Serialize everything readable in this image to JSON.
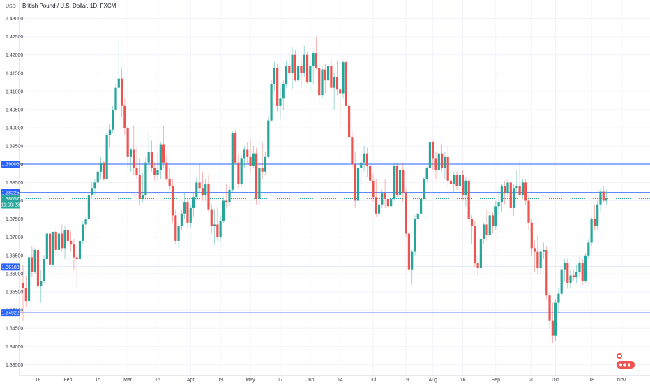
{
  "header": {
    "title": "British Pound / U.S. Dollar, 1D, FXCM",
    "currency": "USD"
  },
  "levels": [
    {
      "value": 1.39006,
      "label": "1.39006",
      "color": "#2962ff"
    },
    {
      "value": 1.38225,
      "label": "1.38225",
      "color": "#2962ff"
    },
    {
      "value": 1.36183,
      "label": "1.36183",
      "color": "#2962ff"
    },
    {
      "value": 1.34922,
      "label": "1.34922",
      "color": "#2962ff"
    }
  ],
  "last_price": {
    "value": 1.38057,
    "label": "1.38057",
    "countdown": "11:09:23",
    "color": "#26a69a"
  },
  "colors": {
    "up": "#26a69a",
    "down": "#ef5350",
    "grid": "#f0f3fa",
    "line": "#2962ff"
  },
  "chart_data": {
    "type": "candlestick",
    "title": "British Pound / U.S. Dollar, 1D, FXCM",
    "ylabel": "USD",
    "ylim": [
      1.33,
      1.43
    ],
    "y_ticks": [
      "1.33500",
      "1.34000",
      "1.34500",
      "1.35000",
      "1.35500",
      "1.36000",
      "1.36500",
      "1.37000",
      "1.37500",
      "1.38000",
      "1.38500",
      "1.39000",
      "1.39500",
      "1.40000",
      "1.40500",
      "1.41000",
      "1.41500",
      "1.42000",
      "1.42500",
      "1.43000"
    ],
    "x_ticks": [
      {
        "label": "18",
        "index": 5
      },
      {
        "label": "Feb",
        "index": 15
      },
      {
        "label": "15",
        "index": 25
      },
      {
        "label": "Mar",
        "index": 35
      },
      {
        "label": "15",
        "index": 45
      },
      {
        "label": "Apr",
        "index": 56
      },
      {
        "label": "19",
        "index": 66
      },
      {
        "label": "May",
        "index": 76
      },
      {
        "label": "17",
        "index": 86
      },
      {
        "label": "Jun",
        "index": 96
      },
      {
        "label": "14",
        "index": 106
      },
      {
        "label": "Jul",
        "index": 117
      },
      {
        "label": "19",
        "index": 128
      },
      {
        "label": "Aug",
        "index": 137
      },
      {
        "label": "16",
        "index": 147
      },
      {
        "label": "Sep",
        "index": 158
      },
      {
        "label": "20",
        "index": 170
      },
      {
        "label": "Oct",
        "index": 178
      },
      {
        "label": "18",
        "index": 190
      },
      {
        "label": "Nov",
        "index": 200
      }
    ],
    "candles": [
      [
        1.3575,
        1.3625,
        1.347,
        1.356
      ],
      [
        1.356,
        1.3595,
        1.351,
        1.3525
      ],
      [
        1.3525,
        1.3665,
        1.352,
        1.3645
      ],
      [
        1.3645,
        1.3675,
        1.359,
        1.3605
      ],
      [
        1.3605,
        1.367,
        1.36,
        1.3665
      ],
      [
        1.3665,
        1.369,
        1.3535,
        1.3565
      ],
      [
        1.3565,
        1.361,
        1.352,
        1.358
      ],
      [
        1.358,
        1.365,
        1.3575,
        1.364
      ],
      [
        1.364,
        1.372,
        1.363,
        1.371
      ],
      [
        1.371,
        1.3725,
        1.361,
        1.3625
      ],
      [
        1.3625,
        1.3715,
        1.362,
        1.3715
      ],
      [
        1.3715,
        1.3725,
        1.365,
        1.3665
      ],
      [
        1.3665,
        1.3715,
        1.364,
        1.371
      ],
      [
        1.371,
        1.3735,
        1.366,
        1.367
      ],
      [
        1.367,
        1.373,
        1.364,
        1.372
      ],
      [
        1.372,
        1.3735,
        1.368,
        1.369
      ],
      [
        1.369,
        1.3715,
        1.366,
        1.368
      ],
      [
        1.368,
        1.3695,
        1.361,
        1.3645
      ],
      [
        1.3645,
        1.3665,
        1.3565,
        1.364
      ],
      [
        1.364,
        1.3695,
        1.363,
        1.369
      ],
      [
        1.369,
        1.3745,
        1.368,
        1.3735
      ],
      [
        1.3735,
        1.376,
        1.372,
        1.375
      ],
      [
        1.375,
        1.382,
        1.3745,
        1.3815
      ],
      [
        1.3815,
        1.385,
        1.3805,
        1.3835
      ],
      [
        1.3835,
        1.386,
        1.3815,
        1.385
      ],
      [
        1.385,
        1.3885,
        1.383,
        1.388
      ],
      [
        1.388,
        1.392,
        1.386,
        1.3905
      ],
      [
        1.3905,
        1.391,
        1.3855,
        1.386
      ],
      [
        1.386,
        1.3985,
        1.3855,
        1.398
      ],
      [
        1.398,
        1.401,
        1.3945,
        1.3995
      ],
      [
        1.3995,
        1.406,
        1.3985,
        1.405
      ],
      [
        1.405,
        1.412,
        1.404,
        1.411
      ],
      [
        1.411,
        1.424,
        1.409,
        1.4135
      ],
      [
        1.4135,
        1.4165,
        1.403,
        1.406
      ],
      [
        1.406,
        1.408,
        1.398,
        1.4
      ],
      [
        1.4,
        1.4005,
        1.389,
        1.392
      ],
      [
        1.392,
        1.3945,
        1.388,
        1.394
      ],
      [
        1.394,
        1.4005,
        1.387,
        1.389
      ],
      [
        1.389,
        1.3945,
        1.386,
        1.387
      ],
      [
        1.387,
        1.3915,
        1.379,
        1.3805
      ],
      [
        1.3805,
        1.3875,
        1.3795,
        1.3815
      ],
      [
        1.3815,
        1.392,
        1.381,
        1.3905
      ],
      [
        1.3905,
        1.3985,
        1.388,
        1.3935
      ],
      [
        1.3935,
        1.3965,
        1.388,
        1.389
      ],
      [
        1.389,
        1.3905,
        1.3855,
        1.387
      ],
      [
        1.387,
        1.393,
        1.3855,
        1.3885
      ],
      [
        1.3885,
        1.396,
        1.386,
        1.3955
      ],
      [
        1.3955,
        1.4005,
        1.389,
        1.3905
      ],
      [
        1.3905,
        1.3925,
        1.3855,
        1.386
      ],
      [
        1.386,
        1.389,
        1.383,
        1.384
      ],
      [
        1.384,
        1.386,
        1.374,
        1.376
      ],
      [
        1.376,
        1.3775,
        1.368,
        1.369
      ],
      [
        1.369,
        1.374,
        1.367,
        1.373
      ],
      [
        1.373,
        1.3775,
        1.372,
        1.3765
      ],
      [
        1.3765,
        1.382,
        1.375,
        1.3795
      ],
      [
        1.3795,
        1.3805,
        1.3725,
        1.374
      ],
      [
        1.374,
        1.379,
        1.3725,
        1.378
      ],
      [
        1.378,
        1.382,
        1.3755,
        1.381
      ],
      [
        1.381,
        1.3865,
        1.38,
        1.385
      ],
      [
        1.385,
        1.39,
        1.382,
        1.3835
      ],
      [
        1.3835,
        1.388,
        1.38,
        1.3815
      ],
      [
        1.3815,
        1.386,
        1.38,
        1.3845
      ],
      [
        1.3845,
        1.387,
        1.377,
        1.3775
      ],
      [
        1.3775,
        1.379,
        1.371,
        1.373
      ],
      [
        1.373,
        1.3775,
        1.368,
        1.3735
      ],
      [
        1.3735,
        1.378,
        1.369,
        1.37
      ],
      [
        1.37,
        1.376,
        1.369,
        1.3745
      ],
      [
        1.3745,
        1.381,
        1.374,
        1.38
      ],
      [
        1.38,
        1.3845,
        1.378,
        1.3795
      ],
      [
        1.3795,
        1.384,
        1.3785,
        1.383
      ],
      [
        1.383,
        1.399,
        1.382,
        1.3985
      ],
      [
        1.3985,
        1.3995,
        1.39,
        1.3905
      ],
      [
        1.3905,
        1.393,
        1.3835,
        1.3845
      ],
      [
        1.3845,
        1.3925,
        1.384,
        1.3915
      ],
      [
        1.3915,
        1.395,
        1.389,
        1.394
      ],
      [
        1.394,
        1.396,
        1.39,
        1.392
      ],
      [
        1.392,
        1.397,
        1.388,
        1.3895
      ],
      [
        1.3895,
        1.395,
        1.389,
        1.393
      ],
      [
        1.393,
        1.3945,
        1.379,
        1.3805
      ],
      [
        1.3805,
        1.3895,
        1.379,
        1.389
      ],
      [
        1.389,
        1.396,
        1.386,
        1.388
      ],
      [
        1.388,
        1.3935,
        1.387,
        1.392
      ],
      [
        1.392,
        1.403,
        1.3915,
        1.402
      ],
      [
        1.402,
        1.413,
        1.4015,
        1.412
      ],
      [
        1.412,
        1.418,
        1.41,
        1.4165
      ],
      [
        1.4165,
        1.4175,
        1.4045,
        1.406
      ],
      [
        1.406,
        1.4115,
        1.4025,
        1.408
      ],
      [
        1.408,
        1.413,
        1.405,
        1.412
      ],
      [
        1.412,
        1.4185,
        1.411,
        1.417
      ],
      [
        1.417,
        1.4205,
        1.414,
        1.415
      ],
      [
        1.415,
        1.422,
        1.4105,
        1.42
      ],
      [
        1.42,
        1.4215,
        1.4125,
        1.413
      ],
      [
        1.413,
        1.418,
        1.41,
        1.417
      ],
      [
        1.417,
        1.419,
        1.411,
        1.415
      ],
      [
        1.415,
        1.4225,
        1.414,
        1.42
      ],
      [
        1.42,
        1.421,
        1.412,
        1.4125
      ],
      [
        1.4125,
        1.419,
        1.41,
        1.417
      ],
      [
        1.417,
        1.421,
        1.412,
        1.4205
      ],
      [
        1.4205,
        1.425,
        1.416,
        1.4165
      ],
      [
        1.4165,
        1.4195,
        1.407,
        1.409
      ],
      [
        1.409,
        1.417,
        1.408,
        1.416
      ],
      [
        1.416,
        1.4175,
        1.4095,
        1.413
      ],
      [
        1.413,
        1.418,
        1.4095,
        1.417
      ],
      [
        1.417,
        1.419,
        1.41,
        1.411
      ],
      [
        1.411,
        1.415,
        1.405,
        1.414
      ],
      [
        1.414,
        1.4185,
        1.409,
        1.4105
      ],
      [
        1.4105,
        1.411,
        1.4005,
        1.4095
      ],
      [
        1.4095,
        1.4185,
        1.408,
        1.418
      ],
      [
        1.418,
        1.4185,
        1.406,
        1.406
      ],
      [
        1.406,
        1.407,
        1.396,
        1.3975
      ],
      [
        1.3975,
        1.399,
        1.389,
        1.39
      ],
      [
        1.39,
        1.3935,
        1.378,
        1.38
      ],
      [
        1.38,
        1.3905,
        1.379,
        1.389
      ],
      [
        1.389,
        1.393,
        1.3845,
        1.3905
      ],
      [
        1.3905,
        1.395,
        1.388,
        1.393
      ],
      [
        1.393,
        1.3945,
        1.3865,
        1.3895
      ],
      [
        1.3895,
        1.39,
        1.3825,
        1.3855
      ],
      [
        1.3855,
        1.3875,
        1.3795,
        1.381
      ],
      [
        1.381,
        1.386,
        1.3755,
        1.3765
      ],
      [
        1.3765,
        1.382,
        1.375,
        1.379
      ],
      [
        1.379,
        1.383,
        1.378,
        1.382
      ],
      [
        1.382,
        1.386,
        1.378,
        1.3805
      ],
      [
        1.3805,
        1.3835,
        1.376,
        1.3785
      ],
      [
        1.3785,
        1.381,
        1.377,
        1.3805
      ],
      [
        1.3805,
        1.3905,
        1.38,
        1.3895
      ],
      [
        1.3895,
        1.3905,
        1.381,
        1.3815
      ],
      [
        1.3815,
        1.3895,
        1.381,
        1.3885
      ],
      [
        1.3885,
        1.3905,
        1.3795,
        1.382
      ],
      [
        1.382,
        1.3835,
        1.37,
        1.371
      ],
      [
        1.371,
        1.373,
        1.36,
        1.361
      ],
      [
        1.361,
        1.3665,
        1.357,
        1.366
      ],
      [
        1.366,
        1.376,
        1.365,
        1.375
      ],
      [
        1.375,
        1.3785,
        1.372,
        1.3765
      ],
      [
        1.3765,
        1.3815,
        1.376,
        1.3805
      ],
      [
        1.3805,
        1.3865,
        1.38,
        1.386
      ],
      [
        1.386,
        1.3895,
        1.385,
        1.389
      ],
      [
        1.389,
        1.3965,
        1.388,
        1.396
      ],
      [
        1.396,
        1.3965,
        1.3885,
        1.3915
      ],
      [
        1.3915,
        1.3935,
        1.386,
        1.3885
      ],
      [
        1.3885,
        1.3945,
        1.387,
        1.393
      ],
      [
        1.393,
        1.3955,
        1.388,
        1.389
      ],
      [
        1.389,
        1.3935,
        1.386,
        1.392
      ],
      [
        1.392,
        1.395,
        1.384,
        1.3855
      ],
      [
        1.3855,
        1.3875,
        1.383,
        1.3845
      ],
      [
        1.3845,
        1.388,
        1.382,
        1.387
      ],
      [
        1.387,
        1.388,
        1.383,
        1.384
      ],
      [
        1.384,
        1.3875,
        1.382,
        1.387
      ],
      [
        1.387,
        1.3885,
        1.38,
        1.3815
      ],
      [
        1.3815,
        1.3865,
        1.3785,
        1.3855
      ],
      [
        1.3855,
        1.387,
        1.374,
        1.375
      ],
      [
        1.375,
        1.376,
        1.368,
        1.373
      ],
      [
        1.373,
        1.3745,
        1.362,
        1.363
      ],
      [
        1.363,
        1.365,
        1.3595,
        1.3615
      ],
      [
        1.3615,
        1.37,
        1.361,
        1.3695
      ],
      [
        1.3695,
        1.374,
        1.368,
        1.3735
      ],
      [
        1.3735,
        1.3775,
        1.369,
        1.3705
      ],
      [
        1.3705,
        1.377,
        1.37,
        1.376
      ],
      [
        1.376,
        1.377,
        1.371,
        1.373
      ],
      [
        1.373,
        1.38,
        1.372,
        1.3785
      ],
      [
        1.3785,
        1.383,
        1.376,
        1.3795
      ],
      [
        1.3795,
        1.3845,
        1.377,
        1.384
      ],
      [
        1.384,
        1.3855,
        1.379,
        1.382
      ],
      [
        1.382,
        1.386,
        1.381,
        1.385
      ],
      [
        1.385,
        1.386,
        1.377,
        1.378
      ],
      [
        1.378,
        1.3845,
        1.376,
        1.3835
      ],
      [
        1.3835,
        1.3885,
        1.382,
        1.384
      ],
      [
        1.384,
        1.391,
        1.381,
        1.3815
      ],
      [
        1.3815,
        1.386,
        1.3805,
        1.385
      ],
      [
        1.385,
        1.386,
        1.379,
        1.38
      ],
      [
        1.38,
        1.3815,
        1.372,
        1.374
      ],
      [
        1.374,
        1.375,
        1.365,
        1.367
      ],
      [
        1.367,
        1.369,
        1.3605,
        1.366
      ],
      [
        1.366,
        1.3705,
        1.36,
        1.3615
      ],
      [
        1.3615,
        1.367,
        1.36,
        1.366
      ],
      [
        1.366,
        1.3685,
        1.364,
        1.3665
      ],
      [
        1.3665,
        1.3675,
        1.353,
        1.354
      ],
      [
        1.354,
        1.355,
        1.345,
        1.347
      ],
      [
        1.347,
        1.352,
        1.341,
        1.343
      ],
      [
        1.343,
        1.353,
        1.3415,
        1.352
      ],
      [
        1.352,
        1.356,
        1.349,
        1.3545
      ],
      [
        1.3545,
        1.3615,
        1.354,
        1.361
      ],
      [
        1.361,
        1.364,
        1.358,
        1.363
      ],
      [
        1.363,
        1.364,
        1.356,
        1.3575
      ],
      [
        1.3575,
        1.361,
        1.356,
        1.3595
      ],
      [
        1.3595,
        1.361,
        1.358,
        1.359
      ],
      [
        1.359,
        1.3625,
        1.3575,
        1.3605
      ],
      [
        1.3605,
        1.3645,
        1.359,
        1.363
      ],
      [
        1.363,
        1.364,
        1.357,
        1.358
      ],
      [
        1.358,
        1.3655,
        1.3575,
        1.365
      ],
      [
        1.365,
        1.3695,
        1.364,
        1.3685
      ],
      [
        1.3685,
        1.3755,
        1.3675,
        1.375
      ],
      [
        1.375,
        1.379,
        1.372,
        1.373
      ],
      [
        1.373,
        1.38,
        1.372,
        1.379
      ],
      [
        1.379,
        1.3835,
        1.377,
        1.3825
      ],
      [
        1.3825,
        1.384,
        1.3795,
        1.38
      ],
      [
        1.38,
        1.383,
        1.379,
        1.3806
      ]
    ]
  }
}
